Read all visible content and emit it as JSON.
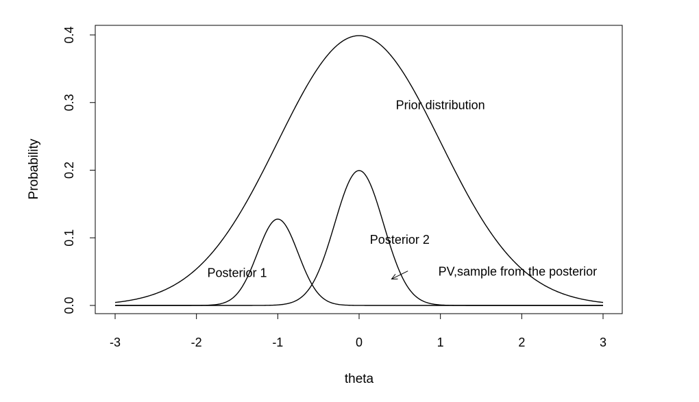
{
  "chart_data": {
    "type": "line",
    "xlabel": "theta",
    "ylabel": "Probability",
    "xlim": [
      -3,
      3
    ],
    "ylim": [
      0,
      0.4
    ],
    "grid": false,
    "xticks": [
      -3,
      -2,
      -1,
      0,
      1,
      2,
      3
    ],
    "xtick_labels": [
      "-3",
      "-2",
      "-1",
      "0",
      "1",
      "2",
      "3"
    ],
    "yticks": [
      0.0,
      0.1,
      0.2,
      0.3,
      0.4
    ],
    "ytick_labels": [
      "0.0",
      "0.1",
      "0.2",
      "0.3",
      "0.4"
    ],
    "series": [
      {
        "mean": 0,
        "sd": 1,
        "scale": 1
      },
      {
        "mean": -1,
        "sd": 0.25,
        "scale": 0.08
      },
      {
        "mean": 0,
        "sd": 0.3,
        "scale": 0.15
      }
    ],
    "annotations": [
      {
        "text": "Prior distribution",
        "x": 1.0,
        "y": 0.296
      },
      {
        "text": "Posterior 1",
        "x": -1.5,
        "y": 0.048
      },
      {
        "text": "Posterior 2",
        "x": 0.5,
        "y": 0.097
      },
      {
        "text": "PV,sample from the posterior",
        "x": 1.95,
        "y": 0.05
      }
    ],
    "arrow": {
      "from": [
        0.6,
        0.051
      ],
      "to": [
        0.4,
        0.039
      ]
    }
  }
}
